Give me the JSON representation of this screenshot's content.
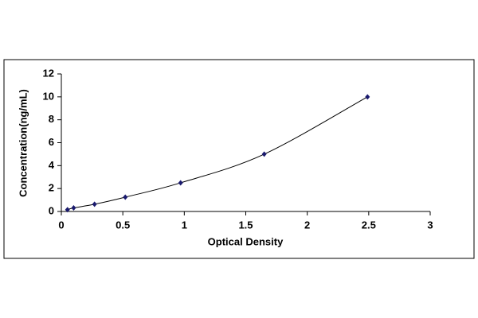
{
  "chart_data": {
    "type": "scatter",
    "x_label": "Optical Density",
    "y_label": "Concentration(ng/mL)",
    "series": [
      {
        "x": [
          0.05,
          0.1,
          0.27,
          0.52,
          0.97,
          1.65,
          2.49
        ],
        "values": [
          0.16,
          0.31,
          0.63,
          1.25,
          2.5,
          5,
          10
        ],
        "color": "#1a1a6e"
      }
    ],
    "trend_line": true,
    "xlim": [
      0,
      3
    ],
    "xticks": [
      0,
      0.5,
      1,
      1.5,
      2,
      2.5,
      3
    ],
    "ylim": [
      0,
      12
    ],
    "yticks": [
      0,
      2,
      4,
      6,
      8,
      10,
      12
    ],
    "grid": false
  }
}
